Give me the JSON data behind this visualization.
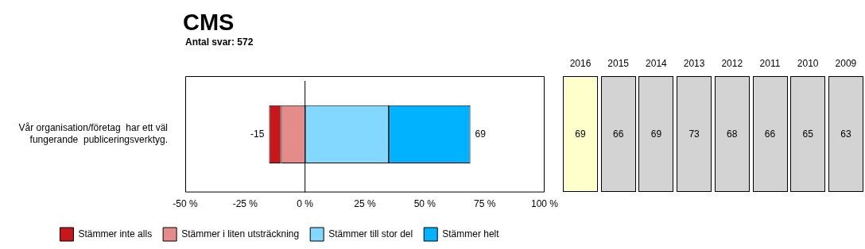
{
  "chart_data": [
    {
      "type": "bar",
      "title": "CMS",
      "subtitle": "Antal svar: 572",
      "orientation": "horizontal",
      "stacked": true,
      "categories": [
        "Vår organisation/företag  har ett väl fungerande  publiceringsverktyg."
      ],
      "series": [
        {
          "name": "Stämmer inte alls",
          "color": "#c8171b",
          "values": [
            -5
          ]
        },
        {
          "name": "Stämmer i liten utsträckning",
          "color": "#e48c8a",
          "values": [
            -10
          ]
        },
        {
          "name": "Stämmer till stor del",
          "color": "#82d8ff",
          "values": [
            35
          ]
        },
        {
          "name": "Stämmer helt",
          "color": "#00b2ff",
          "values": [
            34
          ]
        }
      ],
      "xlim": [
        -50,
        100
      ],
      "xticks": [
        {
          "value": -50,
          "label": "-50 %"
        },
        {
          "value": -25,
          "label": "-25 %"
        },
        {
          "value": 0,
          "label": "0 %"
        },
        {
          "value": 25,
          "label": "25 %"
        },
        {
          "value": 50,
          "label": "50 %"
        },
        {
          "value": 75,
          "label": "75 %"
        },
        {
          "value": 100,
          "label": "100 %"
        }
      ],
      "ref_lines": [
        {
          "axis": "x",
          "value": 0,
          "color": "#000000"
        }
      ],
      "annotations": [
        {
          "text": "-15",
          "x": -15,
          "y": "Vår organisation/företag  har ett väl fungerande  publiceringsverktyg."
        },
        {
          "text": "69",
          "x": 69,
          "y": "Vår organisation/företag  har ett väl fungerande  publiceringsverktyg."
        }
      ],
      "grid": false,
      "legend": "bottom"
    },
    {
      "type": "heatmap",
      "categories": [
        "2016",
        "2015",
        "2014",
        "2013",
        "2012",
        "2011",
        "2010",
        "2009"
      ],
      "y_categories": [
        null
      ],
      "cells": [
        [
          69,
          66,
          69,
          73,
          68,
          66,
          65,
          63
        ]
      ],
      "color": "#d3d3d3",
      "bands": [
        {
          "axis": "x",
          "from": "2016",
          "to": "2016",
          "color": "#ffffcc"
        }
      ],
      "data_labels": true
    }
  ]
}
